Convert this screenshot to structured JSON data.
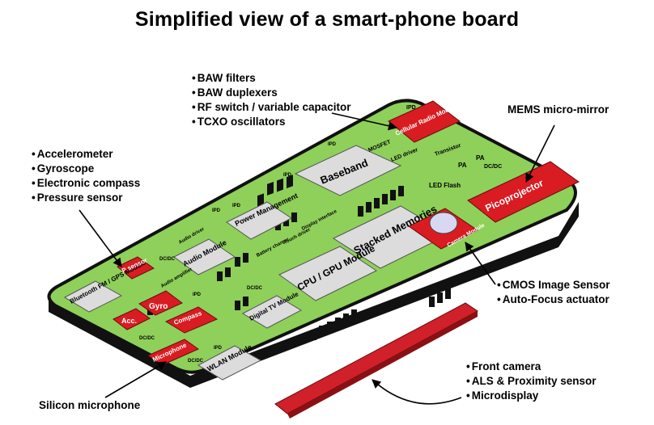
{
  "title": "Simplified view of a smart-phone board",
  "callouts": {
    "rf": [
      "BAW filters",
      "BAW duplexers",
      "RF switch / variable capacitor",
      "TCXO oscillators"
    ],
    "sensors": [
      "Accelerometer",
      "Gyroscope",
      "Electronic compass",
      "Pressure sensor"
    ],
    "mems": "MEMS micro-mirror",
    "camera": [
      "CMOS Image Sensor",
      "Auto-Focus actuator"
    ],
    "front": [
      "Front camera",
      "ALS & Proximity sensor",
      "Microdisplay"
    ],
    "microphone": "Silicon microphone"
  },
  "board_labels": {
    "ipd": "IPD",
    "cellular": "Cellular Radio Module",
    "baseband": "Baseband",
    "mosfet": "MOSFET",
    "led_driver": "LED driver",
    "led_flash": "LED Flash",
    "transistor": "Transistor",
    "pa": "PA",
    "dcdc": "DC/DC",
    "picoprojector": "Picoprojector",
    "camera_module": "Camera Module",
    "stacked_memories": "Stacked Memories",
    "cpu_gpu": "CPU / GPU Module",
    "power_management": "Power Management",
    "audio_driver": "Audio driver",
    "touch_driver": "Touch driver",
    "display_interface": "Display interface",
    "battery_charger": "Battery charger",
    "audio_module": "Audio Module",
    "audio_amplifier": "Audio amplifier",
    "p_sensor": "P sensor",
    "bluetooth": "Bluetooth FM / GPS Module",
    "gyro": "Gyro",
    "acc": "Acc.",
    "compass": "Compass",
    "microphone_chip": "Microphone",
    "digital_tv": "Digital TV Module",
    "wlan": "WLAN Module"
  },
  "colors": {
    "board": "#8ed05a",
    "board_edge": "#1a1a1a",
    "red_chip": "#d91c22",
    "grey_chip": "#dcdcdc",
    "flex": "#d0202a"
  }
}
